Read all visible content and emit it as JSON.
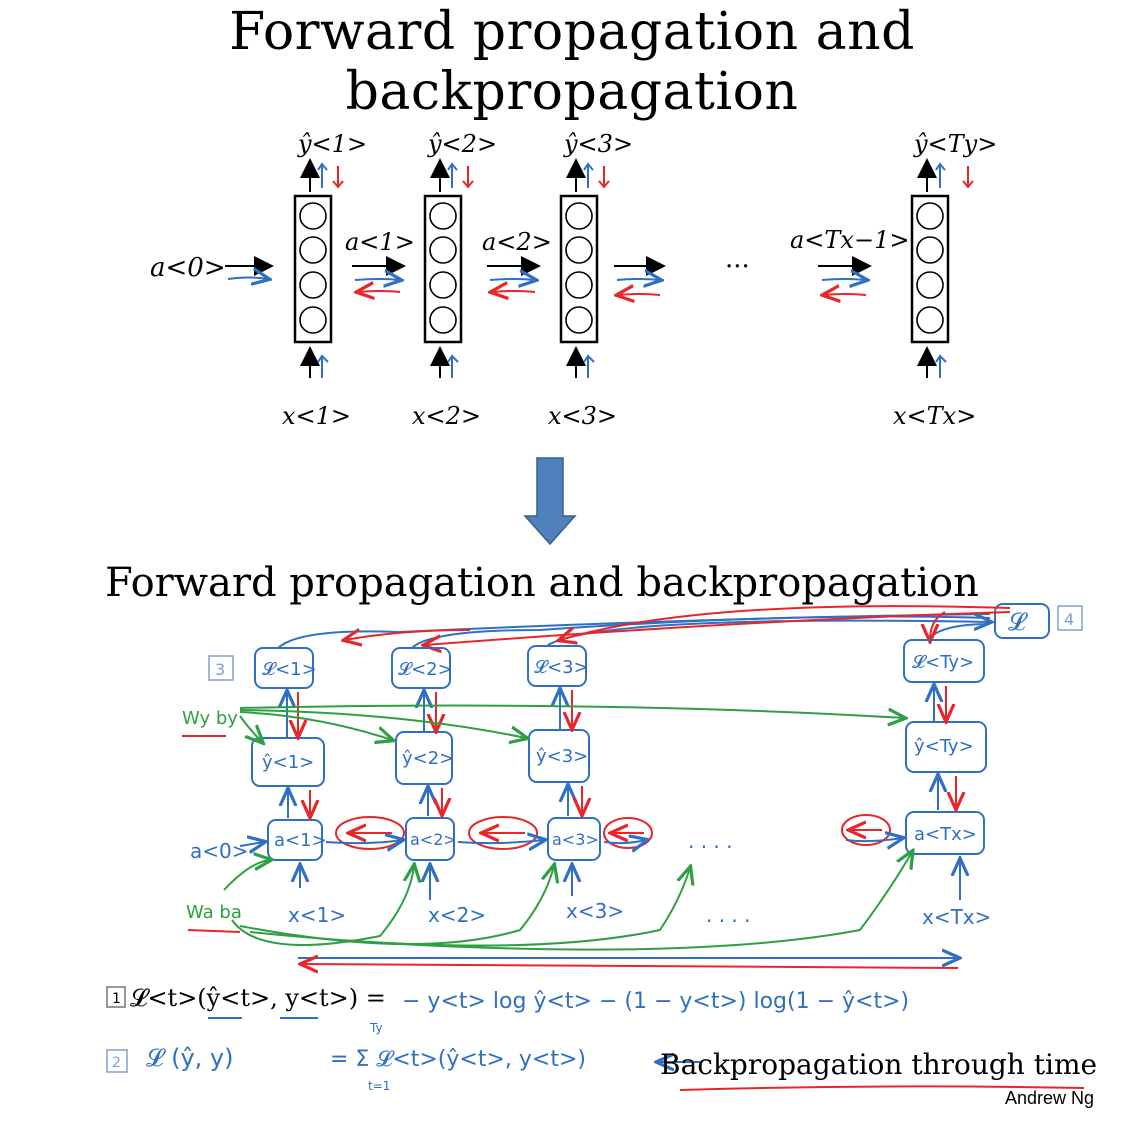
{
  "slide": {
    "title": "Forward propagation and backpropagation",
    "inner_title": "Forward propagation and backpropagation",
    "author": "Andrew Ng"
  },
  "top_diagram": {
    "initial_activation": "a<0>",
    "steps": [
      {
        "y": "ŷ<1>",
        "x": "x<1>",
        "a_out": "a<1>"
      },
      {
        "y": "ŷ<2>",
        "x": "x<2>",
        "a_out": "a<2>"
      },
      {
        "y": "ŷ<3>",
        "x": "x<3>",
        "a_out": ""
      },
      {
        "y": "ŷ<Ty>",
        "x": "x<Tx>",
        "a_in": "a<Tx−1>"
      }
    ],
    "ellipsis": "···"
  },
  "bottom_diagram": {
    "loss_total": "𝓛",
    "losses": [
      "𝓛<1>",
      "𝓛<2>",
      "𝓛<3>",
      "𝓛<Ty>"
    ],
    "yhats": [
      "ŷ<1>",
      "ŷ<2>",
      "ŷ<3>",
      "ŷ<Ty>"
    ],
    "activations": [
      "a<1>",
      "a<2>",
      "a<3>",
      "a<Tx>"
    ],
    "inputs": [
      "x<1>",
      "x<2>",
      "x<3>",
      "x<Tx>"
    ],
    "a0": "a<0>",
    "wy_by": "Wy by",
    "wa_ba": "Wa ba",
    "markers": [
      "1",
      "2",
      "3",
      "4"
    ],
    "dots": ". . . .",
    "formula1_lhs": "𝓛<t>(ŷ<t>, y<t>) =",
    "formula1_rhs": "− y<t> log ŷ<t> − (1 − y<t>) log(1 − ŷ<t>)",
    "formula2_lhs": "𝓛 (ŷ, y)",
    "formula2_rhs": "= Σ 𝓛<t>(ŷ<t>, y<t>)",
    "sum_upper": "Ty",
    "sum_lower": "t=1",
    "bptt": "Backpropagation through time"
  },
  "colors": {
    "forward": "#2f6fc4",
    "backward": "#e8262a",
    "params": "#2ea043",
    "big_arrow": "#4f81bd",
    "marker_box": "#7f9fcf"
  }
}
